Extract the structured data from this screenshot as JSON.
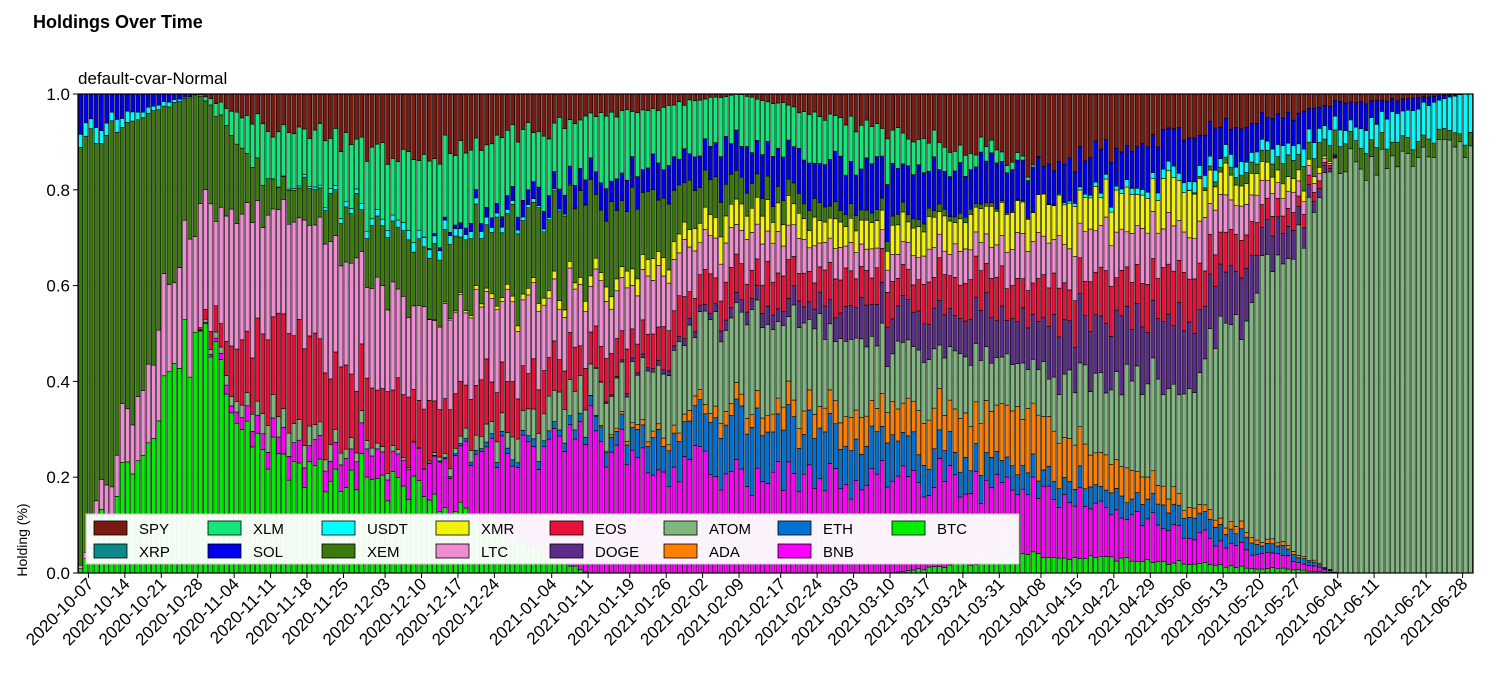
{
  "page": {
    "title": "Holdings Over Time"
  },
  "chart_data": {
    "type": "bar",
    "stacked": true,
    "title": "Holdings Over Time",
    "subtitle": "default-cvar-Normal",
    "xlabel": "",
    "ylabel": "Holding (%)",
    "ylim": [
      0,
      1
    ],
    "yticks": [
      "0.0",
      "0.2",
      "0.4",
      "0.6",
      "0.8",
      "1.0"
    ],
    "grid": true,
    "legend_position": "lower-left",
    "date_range": [
      "2020-10-05",
      "2021-06-30"
    ],
    "xtick_labels": [
      "2020-10-07",
      "2020-10-14",
      "2020-10-21",
      "2020-10-28",
      "2020-11-04",
      "2020-11-11",
      "2020-11-18",
      "2020-11-25",
      "2020-12-03",
      "2020-12-10",
      "2020-12-17",
      "2020-12-24",
      "2021-01-04",
      "2021-01-11",
      "2021-01-19",
      "2021-01-26",
      "2021-02-02",
      "2021-02-09",
      "2021-02-17",
      "2021-02-24",
      "2021-03-03",
      "2021-03-10",
      "2021-03-17",
      "2021-03-24",
      "2021-03-31",
      "2021-04-08",
      "2021-04-15",
      "2021-04-22",
      "2021-04-29",
      "2021-05-06",
      "2021-05-13",
      "2021-05-20",
      "2021-05-27",
      "2021-06-04",
      "2021-06-11",
      "2021-06-21",
      "2021-06-28"
    ],
    "series": [
      {
        "name": "BTC",
        "color": "#00ee00"
      },
      {
        "name": "BNB",
        "color": "#ff00ff"
      },
      {
        "name": "ETH",
        "color": "#0072d6"
      },
      {
        "name": "ADA",
        "color": "#ff7f00"
      },
      {
        "name": "ATOM",
        "color": "#7fb77f"
      },
      {
        "name": "DOGE",
        "color": "#5b2c8a"
      },
      {
        "name": "EOS",
        "color": "#e8113a"
      },
      {
        "name": "LTC",
        "color": "#f08cd2"
      },
      {
        "name": "XMR",
        "color": "#f2f20a"
      },
      {
        "name": "XEM",
        "color": "#3a7a0a"
      },
      {
        "name": "USDT",
        "color": "#00ffff"
      },
      {
        "name": "SOL",
        "color": "#0000ee"
      },
      {
        "name": "XLM",
        "color": "#12e77a"
      },
      {
        "name": "XRP",
        "color": "#0c8a8a"
      },
      {
        "name": "SPY",
        "color": "#7a1a10"
      }
    ],
    "legend_order": [
      "SPY",
      "XRP",
      "XLM",
      "SOL",
      "USDT",
      "XEM",
      "XMR",
      "LTC",
      "EOS",
      "DOGE",
      "ATOM",
      "ADA",
      "ETH",
      "BNB",
      "BTC"
    ],
    "approx_weights_by_period": [
      {
        "period": "2020-10-05",
        "XEM": 0.9,
        "SOL": 0.07,
        "USDT": 0.03
      },
      {
        "period": "2020-10-28",
        "BTC": 0.5,
        "LTC": 0.25,
        "XEM": 0.25
      },
      {
        "period": "2020-11-11",
        "BTC": 0.24,
        "BNB": 0.04,
        "ATOM": 0.05,
        "EOS": 0.2,
        "LTC": 0.25,
        "XEM": 0.05,
        "XLM": 0.1,
        "SPY": 0.07
      },
      {
        "period": "2020-12-10",
        "BTC": 0.17,
        "BNB": 0.06,
        "EOS": 0.12,
        "LTC": 0.2,
        "XEM": 0.15,
        "USDT": 0.02,
        "XLM": 0.15,
        "SPY": 0.13
      },
      {
        "period": "2021-01-11",
        "BNB": 0.28,
        "ETH": 0.02,
        "ATOM": 0.08,
        "EOS": 0.08,
        "LTC": 0.12,
        "XMR": 0.02,
        "XEM": 0.18,
        "SOL": 0.05,
        "XLM": 0.12,
        "SPY": 0.05
      },
      {
        "period": "2021-02-09",
        "BNB": 0.2,
        "ETH": 0.12,
        "ADA": 0.03,
        "ATOM": 0.2,
        "DOGE": 0.02,
        "EOS": 0.07,
        "LTC": 0.08,
        "XMR": 0.05,
        "XEM": 0.05,
        "SOL": 0.08,
        "XLM": 0.1
      },
      {
        "period": "2021-03-10",
        "BNB": 0.2,
        "ETH": 0.08,
        "ADA": 0.07,
        "ATOM": 0.12,
        "DOGE": 0.08,
        "EOS": 0.07,
        "LTC": 0.05,
        "XMR": 0.05,
        "XEM": 0.02,
        "SOL": 0.1,
        "XLM": 0.08,
        "SPY": 0.08
      },
      {
        "period": "2021-04-08",
        "BTC": 0.04,
        "BNB": 0.14,
        "ETH": 0.04,
        "ADA": 0.12,
        "ATOM": 0.1,
        "DOGE": 0.1,
        "EOS": 0.08,
        "LTC": 0.08,
        "XMR": 0.08,
        "SOL": 0.08,
        "SPY": 0.14
      },
      {
        "period": "2021-05-06",
        "BTC": 0.02,
        "BNB": 0.06,
        "ETH": 0.04,
        "ADA": 0.02,
        "ATOM": 0.22,
        "DOGE": 0.15,
        "EOS": 0.1,
        "LTC": 0.1,
        "XMR": 0.08,
        "SOL": 0.08,
        "USDT": 0.02,
        "SPY": 0.08
      },
      {
        "period": "2021-06-04",
        "ATOM": 0.85,
        "XEM": 0.05,
        "USDT": 0.03,
        "SOL": 0.05,
        "SPY": 0.02
      },
      {
        "period": "2021-06-28",
        "ATOM": 0.9,
        "USDT": 0.08,
        "XEM": 0.02
      }
    ]
  }
}
